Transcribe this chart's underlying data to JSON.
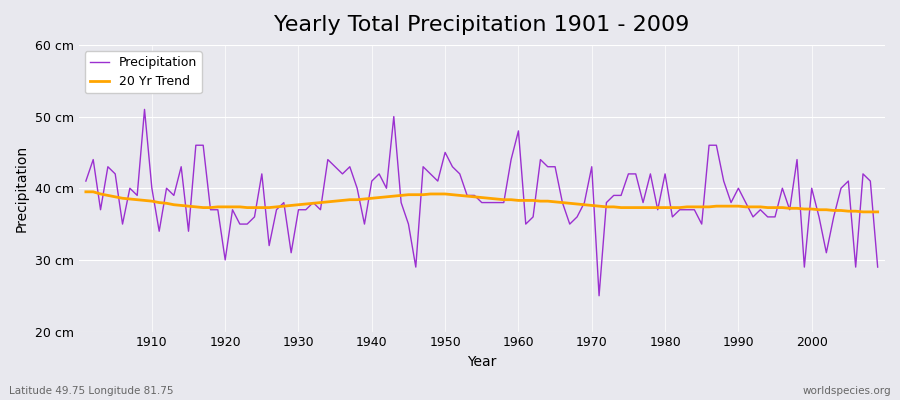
{
  "title": "Yearly Total Precipitation 1901 - 2009",
  "xlabel": "Year",
  "ylabel": "Precipitation",
  "footnote_left": "Latitude 49.75 Longitude 81.75",
  "footnote_right": "worldspecies.org",
  "ylim": [
    20,
    60
  ],
  "yticks": [
    20,
    30,
    40,
    50,
    60
  ],
  "ytick_labels": [
    "20 cm",
    "30 cm",
    "40 cm",
    "50 cm",
    "60 cm"
  ],
  "years": [
    1901,
    1902,
    1903,
    1904,
    1905,
    1906,
    1907,
    1908,
    1909,
    1910,
    1911,
    1912,
    1913,
    1914,
    1915,
    1916,
    1917,
    1918,
    1919,
    1920,
    1921,
    1922,
    1923,
    1924,
    1925,
    1926,
    1927,
    1928,
    1929,
    1930,
    1931,
    1932,
    1933,
    1934,
    1935,
    1936,
    1937,
    1938,
    1939,
    1940,
    1941,
    1942,
    1943,
    1944,
    1945,
    1946,
    1947,
    1948,
    1949,
    1950,
    1951,
    1952,
    1953,
    1954,
    1955,
    1956,
    1957,
    1958,
    1959,
    1960,
    1961,
    1962,
    1963,
    1964,
    1965,
    1966,
    1967,
    1968,
    1969,
    1970,
    1971,
    1972,
    1973,
    1974,
    1975,
    1976,
    1977,
    1978,
    1979,
    1980,
    1981,
    1982,
    1983,
    1984,
    1985,
    1986,
    1987,
    1988,
    1989,
    1990,
    1991,
    1992,
    1993,
    1994,
    1995,
    1996,
    1997,
    1998,
    1999,
    2000,
    2001,
    2002,
    2003,
    2004,
    2005,
    2006,
    2007,
    2008,
    2009
  ],
  "precipitation": [
    41,
    44,
    37,
    43,
    42,
    35,
    40,
    39,
    51,
    40,
    34,
    40,
    39,
    43,
    34,
    46,
    46,
    37,
    37,
    30,
    37,
    35,
    35,
    36,
    42,
    32,
    37,
    38,
    31,
    37,
    37,
    38,
    37,
    44,
    43,
    42,
    43,
    40,
    35,
    41,
    42,
    40,
    50,
    38,
    35,
    29,
    43,
    42,
    41,
    45,
    43,
    42,
    39,
    39,
    38,
    38,
    38,
    38,
    44,
    48,
    35,
    36,
    44,
    43,
    43,
    38,
    35,
    36,
    38,
    43,
    25,
    38,
    39,
    39,
    42,
    42,
    38,
    42,
    37,
    42,
    36,
    37,
    37,
    37,
    35,
    46,
    46,
    41,
    38,
    40,
    38,
    36,
    37,
    36,
    36,
    40,
    37,
    44,
    29,
    40,
    36,
    31,
    36,
    40,
    41,
    29,
    42,
    41,
    29
  ],
  "trend": [
    39.5,
    39.5,
    39.2,
    39.0,
    38.8,
    38.6,
    38.5,
    38.4,
    38.3,
    38.2,
    38.0,
    37.9,
    37.7,
    37.6,
    37.5,
    37.4,
    37.3,
    37.3,
    37.4,
    37.4,
    37.4,
    37.4,
    37.3,
    37.3,
    37.3,
    37.3,
    37.4,
    37.5,
    37.6,
    37.7,
    37.8,
    37.9,
    38.0,
    38.1,
    38.2,
    38.3,
    38.4,
    38.4,
    38.5,
    38.6,
    38.7,
    38.8,
    38.9,
    39.0,
    39.1,
    39.1,
    39.1,
    39.2,
    39.2,
    39.2,
    39.1,
    39.0,
    38.9,
    38.8,
    38.7,
    38.6,
    38.5,
    38.4,
    38.4,
    38.3,
    38.3,
    38.3,
    38.2,
    38.2,
    38.1,
    38.0,
    37.9,
    37.8,
    37.7,
    37.6,
    37.5,
    37.4,
    37.4,
    37.3,
    37.3,
    37.3,
    37.3,
    37.3,
    37.3,
    37.3,
    37.3,
    37.3,
    37.4,
    37.4,
    37.4,
    37.4,
    37.5,
    37.5,
    37.5,
    37.5,
    37.4,
    37.4,
    37.4,
    37.3,
    37.3,
    37.3,
    37.2,
    37.2,
    37.1,
    37.1,
    37.0,
    37.0,
    36.9,
    36.9,
    36.8,
    36.8,
    36.7,
    36.7,
    36.7
  ],
  "precip_color": "#9b30d0",
  "trend_color": "#FFA500",
  "bg_color": "#e8e8ee",
  "grid_color": "#ffffff",
  "title_fontsize": 16,
  "legend_fontsize": 9,
  "axis_fontsize": 9
}
